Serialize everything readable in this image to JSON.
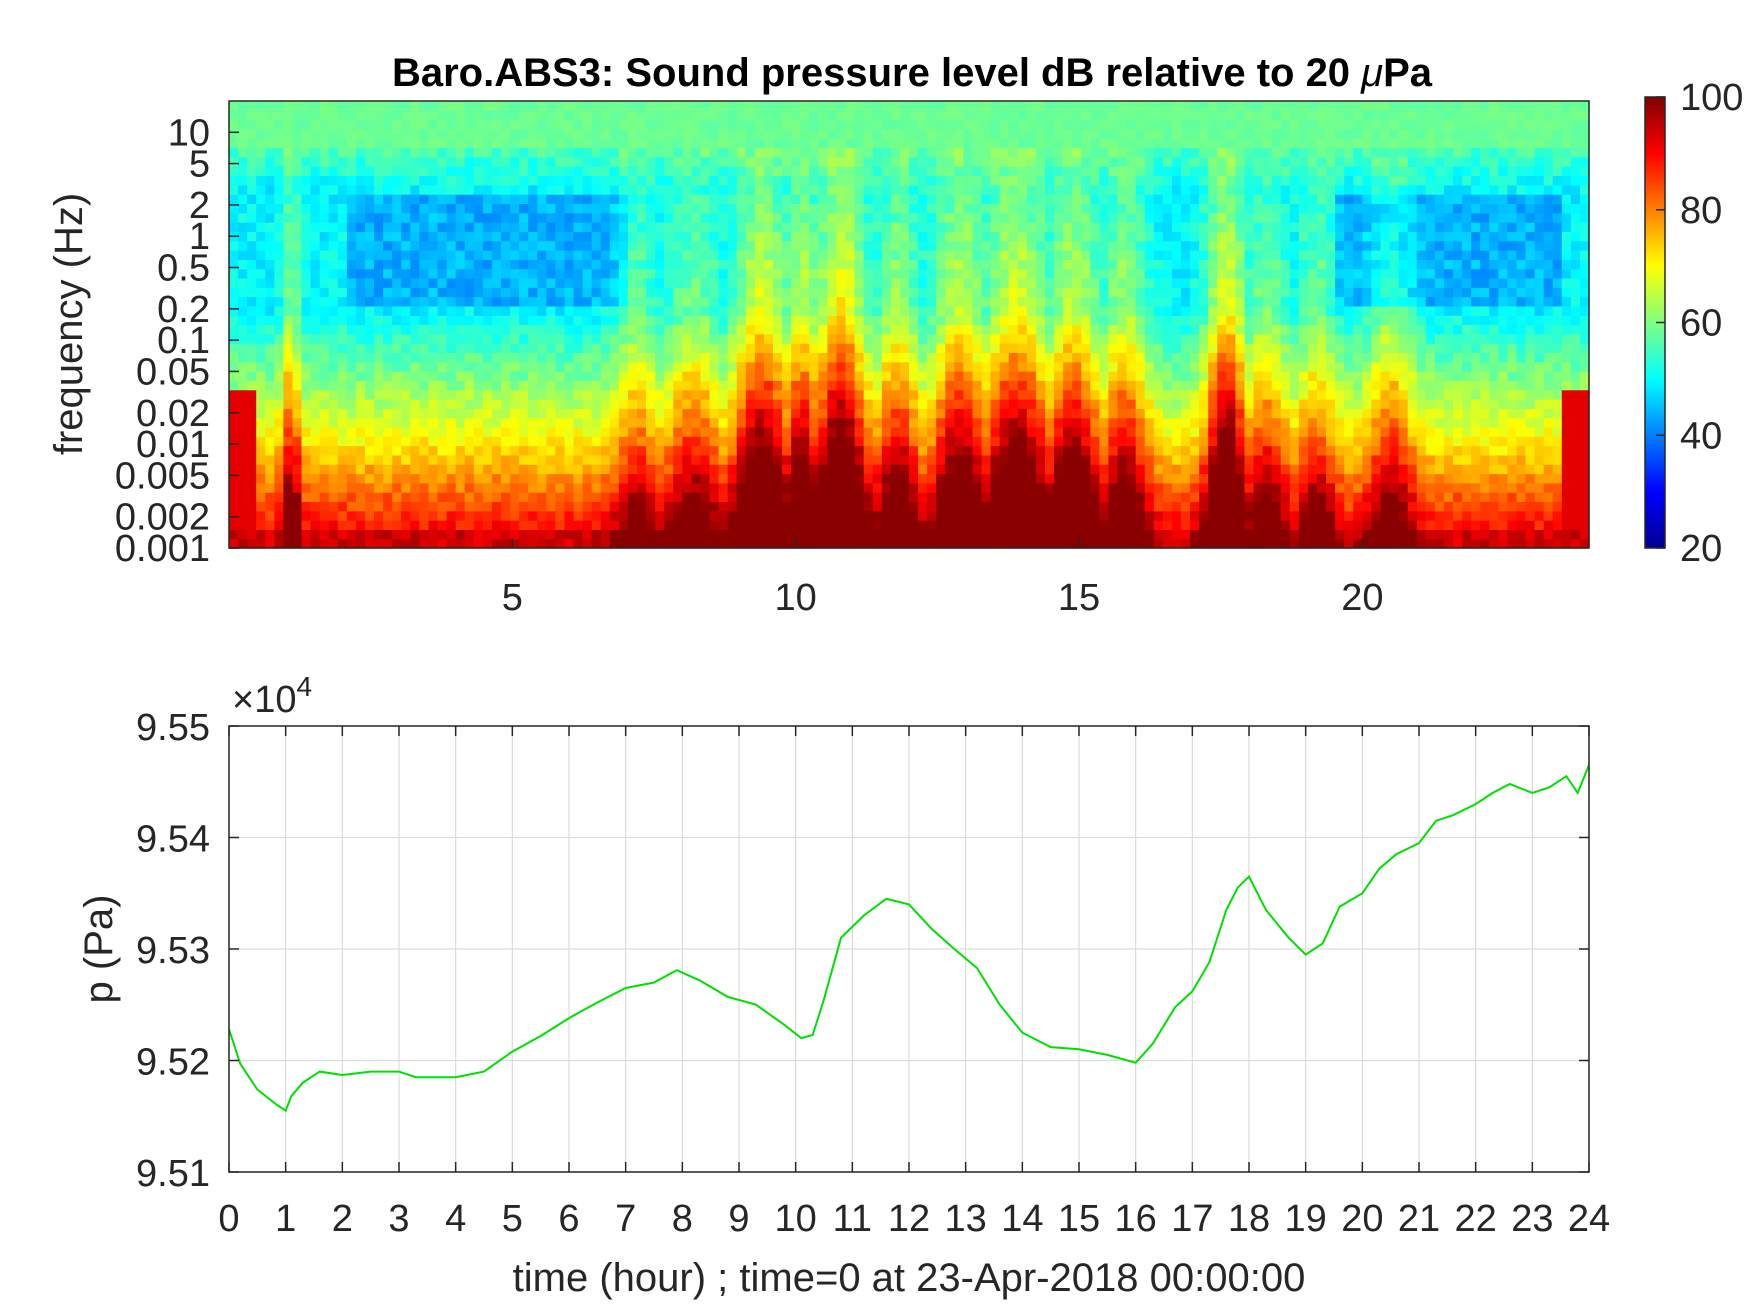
{
  "colors": {
    "pressure_line": "#00e000",
    "grid": "#dcdcdc",
    "axis": "#262626",
    "colormap": "jet"
  },
  "chart_data": [
    {
      "type": "heatmap",
      "title": "Baro.ABS3: Sound pressure level dB relative to 20 μPa",
      "title_prefix": "Baro.ABS3: Sound pressure level dB relative to 20 ",
      "title_mu": "μ",
      "title_suffix": "Pa",
      "xlabel": "",
      "ylabel": "frequency (Hz)",
      "xlim": [
        0,
        24
      ],
      "ylim": [
        0.001,
        20
      ],
      "yscale": "log",
      "xticks": [
        5,
        10,
        15,
        20
      ],
      "xtick_labels": [
        "5",
        "10",
        "15",
        "20"
      ],
      "yticks": [
        0.001,
        0.002,
        0.005,
        0.01,
        0.02,
        0.05,
        0.1,
        0.2,
        0.5,
        1,
        2,
        5,
        10
      ],
      "ytick_labels": [
        "0.001",
        "0.002",
        "0.005",
        "0.01",
        "0.02",
        "0.05",
        "0.1",
        "0.2",
        "0.5",
        "1",
        "2",
        "5",
        "10"
      ],
      "colorbar": {
        "range": [
          20,
          100
        ],
        "ticks": [
          20,
          40,
          60,
          80,
          100
        ],
        "tick_labels": [
          "20",
          "40",
          "60",
          "80",
          "100"
        ]
      },
      "bursts": [
        {
          "t": 1.1,
          "strength": 0.55,
          "width": 0.15
        },
        {
          "t": 7.2,
          "strength": 0.35,
          "width": 0.4
        },
        {
          "t": 8.2,
          "strength": 0.45,
          "width": 0.5
        },
        {
          "t": 9.4,
          "strength": 0.85,
          "width": 0.5
        },
        {
          "t": 10.1,
          "strength": 0.75,
          "width": 0.35
        },
        {
          "t": 10.8,
          "strength": 1.0,
          "width": 0.45
        },
        {
          "t": 11.8,
          "strength": 0.6,
          "width": 0.4
        },
        {
          "t": 12.9,
          "strength": 0.75,
          "width": 0.5
        },
        {
          "t": 13.9,
          "strength": 0.85,
          "width": 0.6
        },
        {
          "t": 14.9,
          "strength": 0.75,
          "width": 0.5
        },
        {
          "t": 15.8,
          "strength": 0.6,
          "width": 0.4
        },
        {
          "t": 17.6,
          "strength": 0.95,
          "width": 0.35
        },
        {
          "t": 18.3,
          "strength": 0.45,
          "width": 0.4
        },
        {
          "t": 19.2,
          "strength": 0.4,
          "width": 0.35
        },
        {
          "t": 20.5,
          "strength": 0.45,
          "width": 0.4
        }
      ]
    },
    {
      "type": "line",
      "title": "",
      "xlabel": "time (hour) ; time=0 at 23-Apr-2018 00:00:00",
      "ylabel": "p (Pa)",
      "y_multiplier_base": "×10",
      "y_multiplier_exp": "4",
      "xlim": [
        0,
        24
      ],
      "ylim": [
        9.51,
        9.55
      ],
      "grid": true,
      "xticks": [
        0,
        1,
        2,
        3,
        4,
        5,
        6,
        7,
        8,
        9,
        10,
        11,
        12,
        13,
        14,
        15,
        16,
        17,
        18,
        19,
        20,
        21,
        22,
        23,
        24
      ],
      "xtick_labels": [
        "0",
        "1",
        "2",
        "3",
        "4",
        "5",
        "6",
        "7",
        "8",
        "9",
        "10",
        "11",
        "12",
        "13",
        "14",
        "15",
        "16",
        "17",
        "18",
        "19",
        "20",
        "21",
        "22",
        "23",
        "24"
      ],
      "yticks": [
        9.51,
        9.52,
        9.53,
        9.54,
        9.55
      ],
      "ytick_labels": [
        "9.51",
        "9.52",
        "9.53",
        "9.54",
        "9.55"
      ],
      "series": [
        {
          "x": [
            0,
            0.2,
            0.5,
            0.8,
            1.0,
            1.1,
            1.3,
            1.6,
            2.0,
            2.5,
            3.0,
            3.3,
            3.6,
            4.0,
            4.5,
            5.0,
            5.5,
            6.0,
            6.5,
            7.0,
            7.5,
            7.9,
            8.3,
            8.8,
            9.3,
            9.8,
            10.1,
            10.3,
            10.5,
            10.8,
            11.2,
            11.6,
            12.0,
            12.4,
            12.8,
            13.2,
            13.6,
            14.0,
            14.5,
            15.0,
            15.5,
            16.0,
            16.3,
            16.7,
            17.0,
            17.3,
            17.6,
            17.8,
            18.0,
            18.3,
            18.7,
            19.0,
            19.3,
            19.6,
            20.0,
            20.3,
            20.6,
            21.0,
            21.3,
            21.6,
            22.0,
            22.3,
            22.6,
            23.0,
            23.3,
            23.6,
            23.8,
            24.0
          ],
          "y": [
            9.5228,
            9.5197,
            9.5174,
            9.5162,
            9.5155,
            9.5168,
            9.518,
            9.519,
            9.5187,
            9.519,
            9.519,
            9.5185,
            9.5185,
            9.5185,
            9.519,
            9.5208,
            9.5222,
            9.5238,
            9.5252,
            9.5265,
            9.527,
            9.5281,
            9.5272,
            9.5257,
            9.525,
            9.5232,
            9.522,
            9.5223,
            9.5255,
            9.531,
            9.533,
            9.5345,
            9.534,
            9.5318,
            9.53,
            9.5283,
            9.525,
            9.5225,
            9.5212,
            9.521,
            9.5205,
            9.5198,
            9.5215,
            9.5248,
            9.5262,
            9.5288,
            9.5335,
            9.5355,
            9.5365,
            9.5335,
            9.531,
            9.5295,
            9.5305,
            9.5338,
            9.535,
            9.5372,
            9.5385,
            9.5395,
            9.5415,
            9.542,
            9.543,
            9.544,
            9.5448,
            9.544,
            9.5445,
            9.5455,
            9.544,
            9.5465
          ]
        }
      ]
    }
  ]
}
